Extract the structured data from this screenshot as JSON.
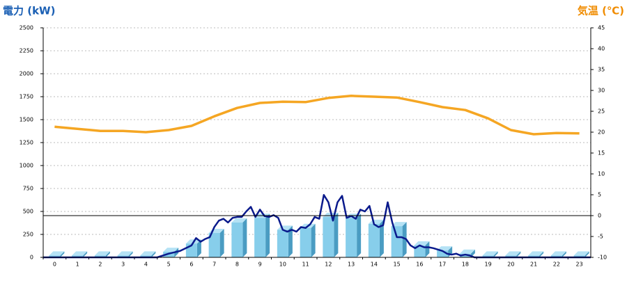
{
  "chart_data": {
    "type": "combo",
    "title": "電力 (kW)",
    "y2_title": "気温 (℃)",
    "categories": [
      "0",
      "1",
      "2",
      "3",
      "4",
      "5",
      "6",
      "7",
      "8",
      "9",
      "10",
      "11",
      "12",
      "13",
      "14",
      "15",
      "16",
      "17",
      "18",
      "19",
      "20",
      "21",
      "22",
      "23"
    ],
    "ylim": [
      0,
      2500
    ],
    "yticks": [
      0,
      250,
      500,
      750,
      1000,
      1250,
      1500,
      1750,
      2000,
      2250,
      2500
    ],
    "y2lim": [
      -10,
      45
    ],
    "y2ticks": [
      -10,
      -5,
      0,
      5,
      10,
      15,
      20,
      25,
      30,
      35,
      40,
      45
    ],
    "xlim": [
      -0.5,
      23.5
    ],
    "grid": true,
    "series": [
      {
        "type": "bar",
        "color": "#87ceeb",
        "values": [
          20,
          20,
          20,
          20,
          20,
          60,
          150,
          265,
          380,
          430,
          300,
          320,
          440,
          430,
          365,
          340,
          130,
          75,
          40,
          20,
          20,
          20,
          20,
          20
        ]
      },
      {
        "type": "line",
        "axis": "y2",
        "color": "#f5a623",
        "values": [
          21.3,
          20.8,
          20.3,
          20.3,
          20,
          20.5,
          21.5,
          23.8,
          25.8,
          27,
          27.3,
          27.2,
          28.2,
          28.7,
          28.5,
          28.3,
          27.2,
          26,
          25.3,
          23.3,
          20.5,
          19.5,
          19.8,
          19.7
        ]
      },
      {
        "type": "line",
        "color": "#0a1a8c",
        "x": [
          -0.5,
          4.5,
          5,
          5.5,
          6,
          6.2,
          6.4,
          6.6,
          6.8,
          7,
          7.2,
          7.4,
          7.6,
          7.8,
          8,
          8.2,
          8.4,
          8.6,
          8.8,
          9,
          9.2,
          9.4,
          9.6,
          9.8,
          10,
          10.2,
          10.4,
          10.6,
          10.8,
          11,
          11.2,
          11.4,
          11.6,
          11.8,
          12,
          12.2,
          12.4,
          12.6,
          12.8,
          13,
          13.2,
          13.4,
          13.6,
          13.8,
          14,
          14.2,
          14.4,
          14.6,
          14.8,
          15,
          15.2,
          15.4,
          15.6,
          15.8,
          16,
          16.2,
          16.4,
          16.6,
          17,
          17.2,
          17.4,
          17.6,
          17.8,
          18,
          18.2,
          18.4,
          23.5
        ],
        "values": [
          0,
          0,
          40,
          70,
          130,
          210,
          170,
          200,
          220,
          330,
          400,
          420,
          380,
          430,
          440,
          440,
          500,
          550,
          440,
          520,
          450,
          440,
          460,
          430,
          300,
          280,
          300,
          280,
          330,
          320,
          360,
          440,
          420,
          680,
          600,
          400,
          600,
          670,
          430,
          450,
          420,
          520,
          500,
          560,
          360,
          330,
          350,
          600,
          380,
          220,
          220,
          200,
          130,
          100,
          130,
          110,
          110,
          100,
          70,
          40,
          30,
          40,
          20,
          30,
          20,
          0,
          0
        ]
      }
    ]
  }
}
